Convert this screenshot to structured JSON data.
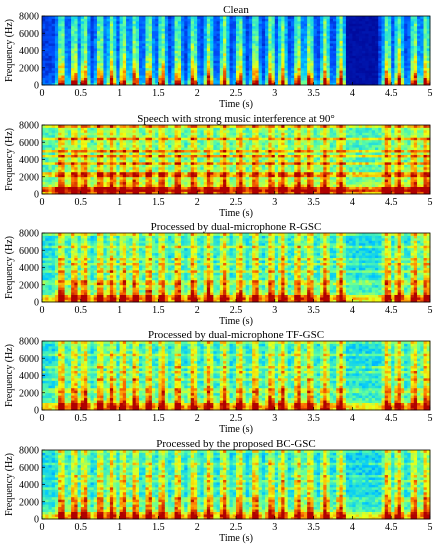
{
  "chart_data": [
    {
      "type": "heatmap",
      "title": "Clean",
      "xlabel": "Time (s)",
      "ylabel": "Frequency (Hz)",
      "xlim": [
        0,
        5
      ],
      "ylim": [
        0,
        8000
      ],
      "x_ticks": [
        "0",
        "0.5",
        "1",
        "1.5",
        "2",
        "2.5",
        "3",
        "3.5",
        "4",
        "4.5",
        "5"
      ],
      "y_ticks": [
        "0",
        "2000",
        "4000",
        "6000",
        "8000"
      ],
      "colormap": [
        "#00008f",
        "#0050ff",
        "#00c8ff",
        "#60ff9f",
        "#f0ff10",
        "#ff7000",
        "#b00000"
      ]
    },
    {
      "type": "heatmap",
      "title": "Speech with strong music interference at 90°",
      "xlabel": "Time (s)",
      "ylabel": "Frequency (Hz)",
      "xlim": [
        0,
        5
      ],
      "ylim": [
        0,
        8000
      ],
      "x_ticks": [
        "0",
        "0.5",
        "1",
        "1.5",
        "2",
        "2.5",
        "3",
        "3.5",
        "4",
        "4.5",
        "5"
      ],
      "y_ticks": [
        "0",
        "2000",
        "4000",
        "6000",
        "8000"
      ],
      "colormap": [
        "#00008f",
        "#0050ff",
        "#00c8ff",
        "#60ff9f",
        "#f0ff10",
        "#ff7000",
        "#b00000"
      ]
    },
    {
      "type": "heatmap",
      "title": "Processed by dual-microphone R-GSC",
      "xlabel": "Time (s)",
      "ylabel": "Frequency (Hz)",
      "xlim": [
        0,
        5
      ],
      "ylim": [
        0,
        8000
      ],
      "x_ticks": [
        "0",
        "0.5",
        "1",
        "1.5",
        "2",
        "2.5",
        "3",
        "3.5",
        "4",
        "4.5",
        "5"
      ],
      "y_ticks": [
        "0",
        "2000",
        "4000",
        "6000",
        "8000"
      ],
      "colormap": [
        "#00008f",
        "#0050ff",
        "#00c8ff",
        "#60ff9f",
        "#f0ff10",
        "#ff7000",
        "#b00000"
      ]
    },
    {
      "type": "heatmap",
      "title": "Processed by dual-microphone TF-GSC",
      "xlabel": "Time (s)",
      "ylabel": "Frequency (Hz)",
      "xlim": [
        0,
        5
      ],
      "ylim": [
        0,
        8000
      ],
      "x_ticks": [
        "0",
        "0.5",
        "1",
        "1.5",
        "2",
        "2.5",
        "3",
        "3.5",
        "4",
        "4.5",
        "5"
      ],
      "y_ticks": [
        "0",
        "2000",
        "4000",
        "6000",
        "8000"
      ],
      "colormap": [
        "#00008f",
        "#0050ff",
        "#00c8ff",
        "#60ff9f",
        "#f0ff10",
        "#ff7000",
        "#b00000"
      ]
    },
    {
      "type": "heatmap",
      "title": "Processed by the proposed BC-GSC",
      "xlabel": "Time (s)",
      "ylabel": "Frequency (Hz)",
      "xlim": [
        0,
        5
      ],
      "ylim": [
        0,
        8000
      ],
      "x_ticks": [
        "0",
        "0.5",
        "1",
        "1.5",
        "2",
        "2.5",
        "3",
        "3.5",
        "4",
        "4.5",
        "5"
      ],
      "y_ticks": [
        "0",
        "2000",
        "4000",
        "6000",
        "8000"
      ],
      "colormap": [
        "#00008f",
        "#0050ff",
        "#00c8ff",
        "#60ff9f",
        "#f0ff10",
        "#ff7000",
        "#b00000"
      ]
    }
  ]
}
